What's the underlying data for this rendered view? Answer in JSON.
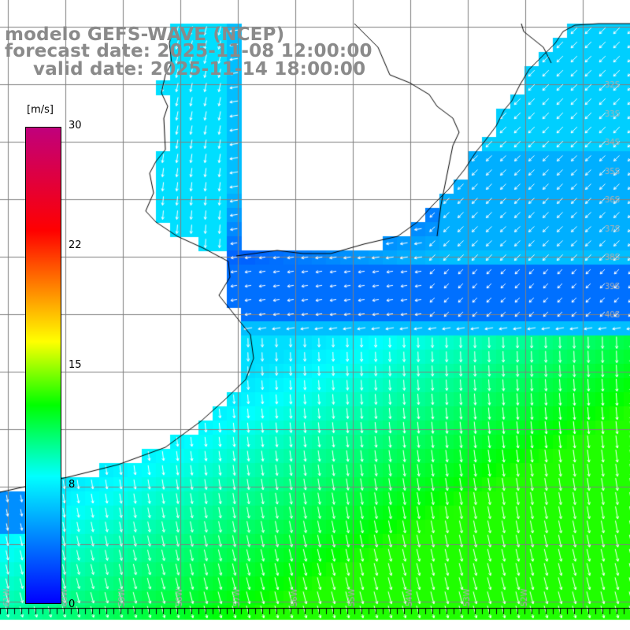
{
  "title": {
    "line1": "modelo GEFS-WAVE (NCEP)",
    "line2": "forecast date: 2025-11-08 12:00:00",
    "line3": "valid date: 2025-11-14 18:00:00"
  },
  "colorbar": {
    "unit": "[m/s]",
    "ticks": [
      "30",
      "22",
      "15",
      "8",
      "0"
    ],
    "tick_values": [
      30,
      22,
      15,
      8,
      0
    ],
    "colors": [
      "#0000ff",
      "#00ffff",
      "#00ff00",
      "#ffff00",
      "#ff8000",
      "#ff0000",
      "#c0007c"
    ],
    "stops": [
      0,
      8,
      12.5,
      16.5,
      20,
      23.5,
      30
    ]
  },
  "map": {
    "lat_labels": [
      "32S",
      "33S",
      "34S",
      "35S",
      "36S",
      "37S",
      "38S",
      "39S",
      "40S"
    ],
    "lon_labels": [
      "61W",
      "60W",
      "59W",
      "58W",
      "57W",
      "56W",
      "55W",
      "54W",
      "53W",
      "52W"
    ],
    "wind_field_ranges": {
      "coastal_band_m_s": [
        3,
        6
      ],
      "central_m_s": [
        7,
        9
      ],
      "southeast_m_s": [
        10,
        13
      ]
    },
    "land_color": "#ffffff",
    "grid_color": "#7f7f7f",
    "arrow_color": "#ffffff",
    "coast_color": "#000000"
  }
}
